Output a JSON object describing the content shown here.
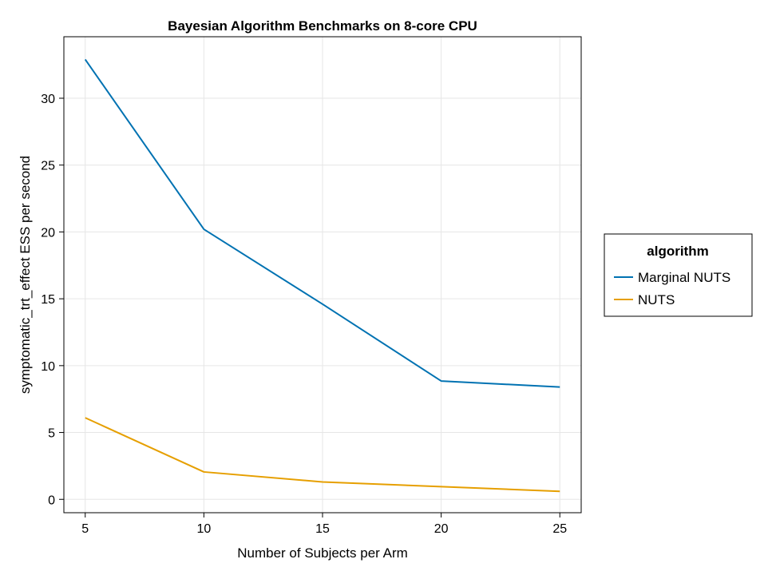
{
  "chart_data": {
    "type": "line",
    "title": "Bayesian Algorithm Benchmarks on 8-core CPU",
    "xlabel": "Number of Subjects per Arm",
    "ylabel": "symptomatic_trt_effect ESS per second",
    "x": [
      5,
      10,
      15,
      20,
      25
    ],
    "xlim": [
      4.1,
      25.9
    ],
    "ylim": [
      -1.0,
      34.6
    ],
    "xticks": [
      5,
      10,
      15,
      20,
      25
    ],
    "yticks": [
      0,
      5,
      10,
      15,
      20,
      25,
      30
    ],
    "grid": true,
    "legend": {
      "title": "algorithm",
      "placement": "right"
    },
    "series": [
      {
        "name": "Marginal NUTS",
        "color": "#0072b2",
        "values": [
          32.9,
          20.2,
          14.6,
          8.85,
          8.4
        ]
      },
      {
        "name": "NUTS",
        "color": "#e69f00",
        "values": [
          6.1,
          2.05,
          1.3,
          0.95,
          0.6
        ]
      }
    ]
  }
}
